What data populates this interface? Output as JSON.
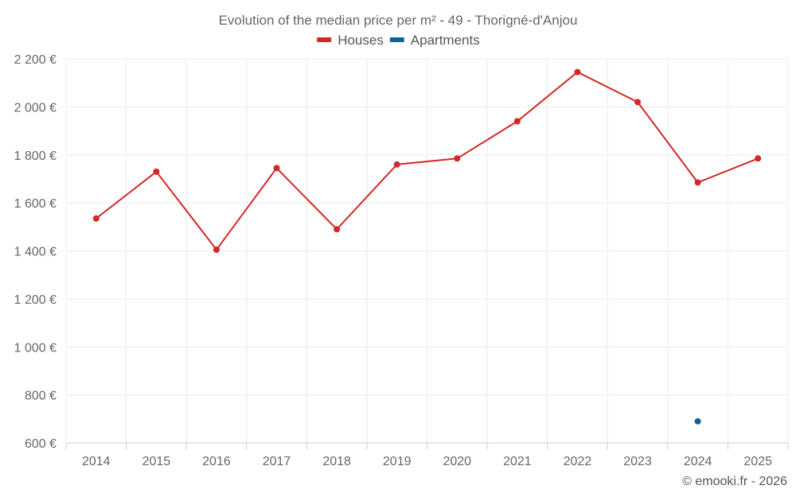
{
  "chart_data": {
    "type": "line",
    "title": "Evolution of the median price per m² - 49 - Thorigné-d'Anjou",
    "categories": [
      "2014",
      "2015",
      "2016",
      "2017",
      "2018",
      "2019",
      "2020",
      "2021",
      "2022",
      "2023",
      "2024",
      "2025"
    ],
    "series": [
      {
        "name": "Houses",
        "color": "#d32828",
        "values": [
          1535,
          1730,
          1405,
          1745,
          1490,
          1760,
          1785,
          1940,
          2145,
          2020,
          1685,
          1785
        ]
      },
      {
        "name": "Apartments",
        "color": "#0e6396",
        "values": [
          null,
          null,
          null,
          null,
          null,
          null,
          null,
          null,
          null,
          null,
          690,
          null
        ]
      }
    ],
    "ylim": [
      600,
      2200
    ],
    "yticks": [
      600,
      800,
      1000,
      1200,
      1400,
      1600,
      1800,
      2000,
      2200
    ],
    "ytick_labels": [
      "600 €",
      "800 €",
      "1 000 €",
      "1 200 €",
      "1 400 €",
      "1 600 €",
      "1 800 €",
      "2 000 €",
      "2 200 €"
    ],
    "xlabel": "",
    "ylabel": "",
    "grid": true,
    "legend_position": "top-center"
  },
  "credit": "© emooki.fr - 2026"
}
